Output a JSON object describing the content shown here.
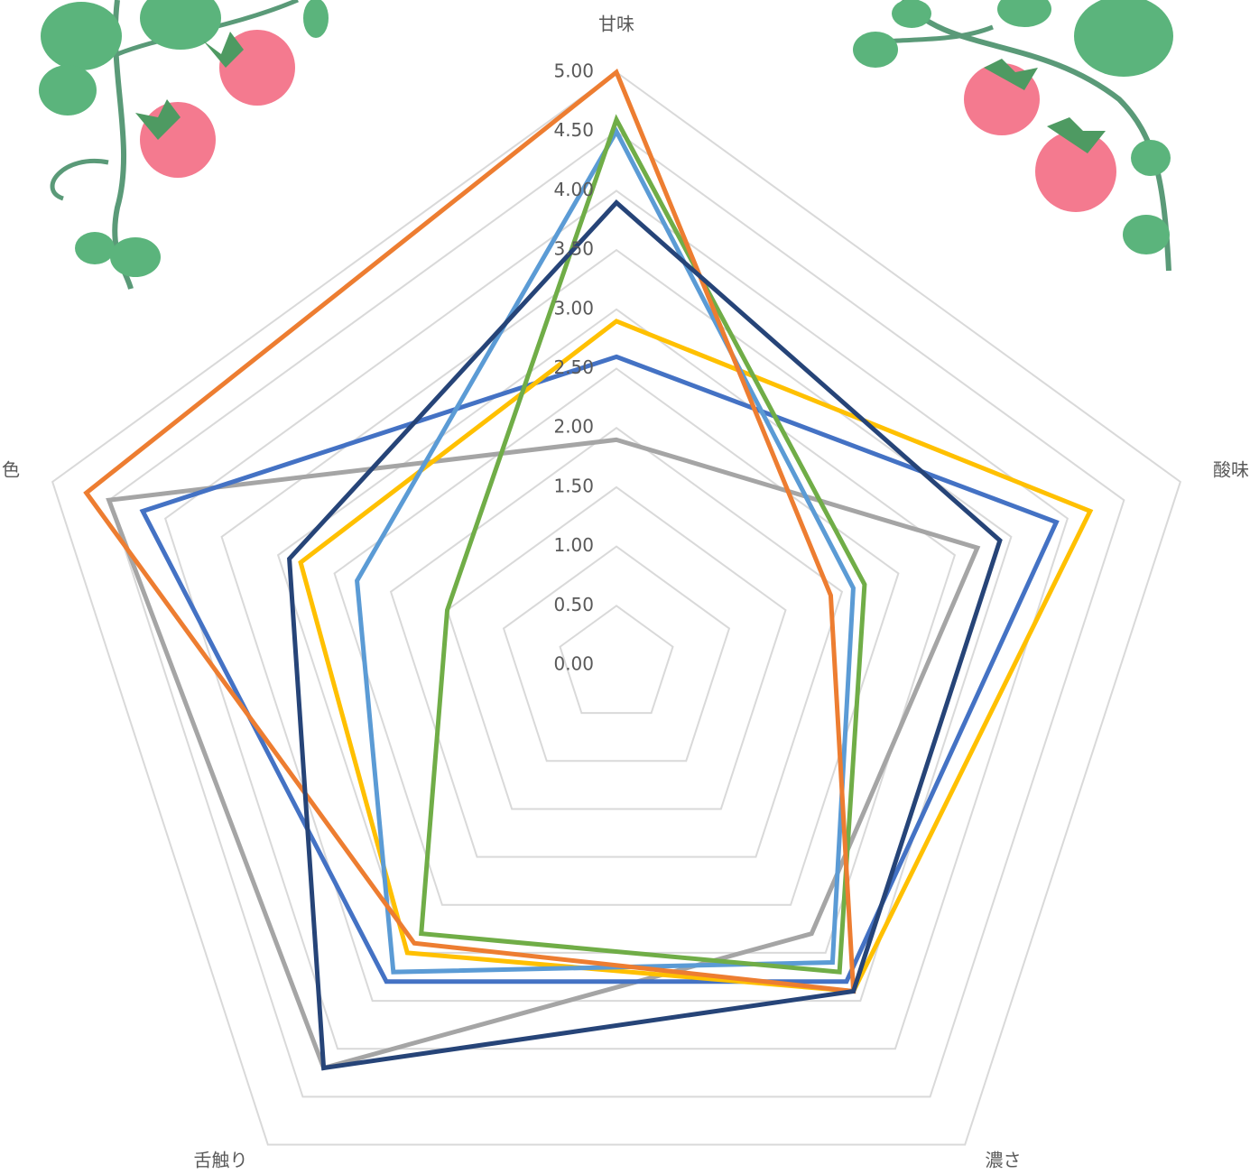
{
  "chart_data": {
    "type": "radar",
    "categories": [
      "甘味",
      "酸味",
      "濃さ",
      "舌触り",
      "色"
    ],
    "ylim": [
      0,
      5
    ],
    "yticks": [
      {
        "value": 0,
        "label": "0.00"
      },
      {
        "value": 0.5,
        "label": "0.50"
      },
      {
        "value": 1,
        "label": "1.00"
      },
      {
        "value": 1.5,
        "label": "1.50"
      },
      {
        "value": 2,
        "label": "2.00"
      },
      {
        "value": 2.5,
        "label": "2.50"
      },
      {
        "value": 3,
        "label": "3.00"
      },
      {
        "value": 3.5,
        "label": "3.50"
      },
      {
        "value": 4,
        "label": "4.00"
      },
      {
        "value": 4.5,
        "label": "4.50"
      },
      {
        "value": 5,
        "label": "5.00"
      }
    ],
    "grid": true,
    "series": [
      {
        "color": "#A5A5A5",
        "values": [
          1.9,
          3.2,
          2.8,
          4.2,
          4.5
        ]
      },
      {
        "color": "#4472C4",
        "values": [
          2.6,
          3.9,
          3.3,
          3.3,
          4.2
        ]
      },
      {
        "color": "#FFC000",
        "values": [
          2.9,
          4.2,
          3.4,
          3.0,
          2.8
        ]
      },
      {
        "color": "#5B9BD5",
        "values": [
          4.5,
          2.1,
          3.1,
          3.2,
          2.3
        ]
      },
      {
        "color": "#70AD47",
        "values": [
          4.6,
          2.2,
          3.2,
          2.8,
          1.5
        ]
      },
      {
        "color": "#ED7D31",
        "values": [
          5.0,
          1.9,
          3.4,
          2.9,
          4.7
        ]
      },
      {
        "color": "#264478",
        "values": [
          3.9,
          3.4,
          3.4,
          4.2,
          2.9
        ]
      }
    ]
  }
}
